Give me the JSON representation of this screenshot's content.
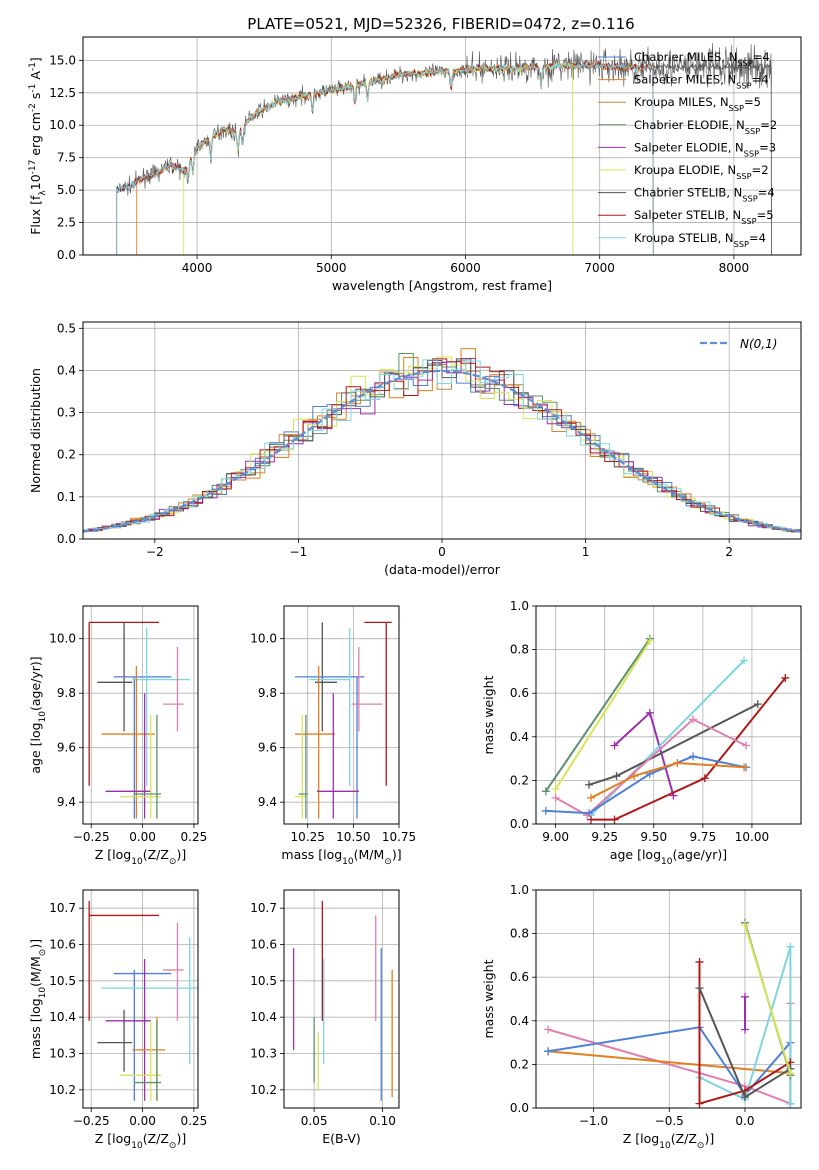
{
  "title": "PLATE=0521, MJD=52326, FIBERID=0472, z=0.116",
  "colors": {
    "chabrier_miles": "#4f7fd6",
    "salpeter_miles": "#e07f1f",
    "kroupa_miles": "#c08a3a",
    "chabrier_elodie": "#5f8f6f",
    "salpeter_elodie": "#9b2fb0",
    "kroupa_elodie": "#d9e35a",
    "chabrier_stelib": "#555555",
    "salpeter_stelib": "#b01818",
    "kroupa_stelib": "#7fd4e0",
    "pink": "#e07fb0",
    "gauss": "#5b8fd6"
  },
  "chart_data": [
    {
      "id": "spectrum",
      "type": "line",
      "xlabel": "wavelength [Angstrom, rest frame]",
      "ylabel": "Flux [f$_\\lambda$10$^{-17}$ erg cm$^{-2}$ s$^{-1}$ A$^{-1}$]",
      "xlim": [
        3150,
        8500
      ],
      "ylim": [
        0,
        16.8
      ],
      "xticks": [
        "4000",
        "5000",
        "6000",
        "7000",
        "8000"
      ],
      "yticks": [
        "0.0",
        "2.5",
        "5.0",
        "7.5",
        "10.0",
        "12.5",
        "15.0"
      ],
      "legend_position": "upper right",
      "legend": [
        {
          "label": "Chabrier MILES, N$_{SSP}$=4",
          "color": "#4f7fd6"
        },
        {
          "label": "Salpeter MILES, N$_{SSP}$=4",
          "color": "#e07f1f"
        },
        {
          "label": "Kroupa MILES, N$_{SSP}$=5",
          "color": "#c08a3a"
        },
        {
          "label": "Chabrier ELODIE, N$_{SSP}$=2",
          "color": "#5f8f6f"
        },
        {
          "label": "Salpeter ELODIE, N$_{SSP}$=3",
          "color": "#9b2fb0"
        },
        {
          "label": "Kroupa ELODIE, N$_{SSP}$=2",
          "color": "#d9e35a"
        },
        {
          "label": "Chabrier STELIB, N$_{SSP}$=4",
          "color": "#555555"
        },
        {
          "label": "Salpeter STELIB, N$_{SSP}$=5",
          "color": "#b01818"
        },
        {
          "label": "Kroupa STELIB, N$_{SSP}$=4",
          "color": "#7fd4e0"
        }
      ],
      "continuum": [
        [
          3400,
          5.0
        ],
        [
          3500,
          5.3
        ],
        [
          3600,
          6.0
        ],
        [
          3700,
          6.3
        ],
        [
          3800,
          7.0
        ],
        [
          3900,
          6.4
        ],
        [
          4000,
          8.3
        ],
        [
          4100,
          9.0
        ],
        [
          4200,
          9.7
        ],
        [
          4300,
          9.4
        ],
        [
          4400,
          10.6
        ],
        [
          4500,
          11.3
        ],
        [
          4600,
          11.8
        ],
        [
          4700,
          12.0
        ],
        [
          4800,
          12.3
        ],
        [
          4900,
          12.5
        ],
        [
          5000,
          12.7
        ],
        [
          5100,
          12.9
        ],
        [
          5200,
          13.1
        ],
        [
          5300,
          13.4
        ],
        [
          5400,
          13.6
        ],
        [
          5500,
          13.9
        ],
        [
          5600,
          14.0
        ],
        [
          5700,
          14.0
        ],
        [
          5800,
          14.1
        ],
        [
          5900,
          14.2
        ],
        [
          6000,
          14.2
        ],
        [
          6100,
          14.4
        ],
        [
          6200,
          14.4
        ],
        [
          6300,
          14.4
        ],
        [
          6400,
          14.4
        ],
        [
          6500,
          14.5
        ],
        [
          6600,
          14.5
        ],
        [
          6700,
          14.6
        ],
        [
          6800,
          14.6
        ],
        [
          6900,
          14.6
        ],
        [
          7000,
          14.6
        ],
        [
          7100,
          14.5
        ],
        [
          7200,
          14.5
        ],
        [
          7300,
          14.4
        ],
        [
          7400,
          14.5
        ],
        [
          7500,
          14.5
        ],
        [
          7600,
          14.4
        ],
        [
          7700,
          14.5
        ],
        [
          7800,
          14.5
        ],
        [
          7900,
          14.5
        ],
        [
          8000,
          14.5
        ],
        [
          8100,
          14.5
        ],
        [
          8200,
          14.5
        ],
        [
          8280,
          14.5
        ]
      ],
      "model_ranges": [
        {
          "key": "chabrier_stelib",
          "x": [
            3400,
            8280
          ]
        },
        {
          "key": "salpeter_miles",
          "x": [
            3550,
            7400
          ]
        },
        {
          "key": "kroupa_elodie",
          "x": [
            3900,
            6800
          ]
        },
        {
          "key": "salpeter_stelib",
          "x": [
            3400,
            7400
          ]
        },
        {
          "key": "kroupa_stelib",
          "x": [
            3400,
            7400
          ]
        }
      ]
    },
    {
      "id": "residuals",
      "type": "step",
      "xlabel": "(data-model)/error",
      "ylabel": "Normed distribution",
      "xlim": [
        -2.5,
        2.5
      ],
      "ylim": [
        0,
        0.515
      ],
      "xticks": [
        "−2",
        "−1",
        "0",
        "1",
        "2"
      ],
      "yticks": [
        "0.0",
        "0.1",
        "0.2",
        "0.3",
        "0.4",
        "0.5"
      ],
      "legend_position": "upper right",
      "legend": [
        {
          "label": "$\\mathcal{N}(0,1)$",
          "color": "#5b8fd6"
        }
      ],
      "curve": "gaussian"
    },
    {
      "id": "age_vs_z",
      "type": "errorbar",
      "xlabel": "Z [log$_{10}$(Z/Z$_\\odot$)]",
      "ylabel": "age  [log$_{10}$(age/yr)]",
      "xlim": [
        -0.29,
        0.27
      ],
      "ylim": [
        9.32,
        10.12
      ],
      "xticks": [
        "−0.25",
        "0.00",
        "0.25"
      ],
      "yticks": [
        "9.4",
        "9.6",
        "9.8",
        "10.0"
      ],
      "points": [
        {
          "color": "#b01818",
          "x": -0.26,
          "xmin": -0.26,
          "xmax": 0.08,
          "y": 10.06,
          "ymin": 9.46,
          "ymax": 10.06
        },
        {
          "color": "#555555",
          "x": -0.09,
          "xmin": -0.22,
          "xmax": -0.05,
          "y": 9.84,
          "ymin": 9.66,
          "ymax": 10.06
        },
        {
          "color": "#4f7fd6",
          "x": -0.04,
          "xmin": -0.14,
          "xmax": 0.14,
          "y": 9.86,
          "ymin": 9.34,
          "ymax": 9.86
        },
        {
          "color": "#7fd4e0",
          "x": 0.02,
          "xmin": -0.05,
          "xmax": 0.23,
          "y": 9.85,
          "ymin": 9.46,
          "ymax": 10.04
        },
        {
          "color": "#e07f1f",
          "x": -0.03,
          "xmin": -0.2,
          "xmax": 0.06,
          "y": 9.65,
          "ymin": 9.34,
          "ymax": 9.9
        },
        {
          "color": "#e07fb0",
          "x": 0.17,
          "xmin": 0.1,
          "xmax": 0.2,
          "y": 9.76,
          "ymin": 9.66,
          "ymax": 9.97
        },
        {
          "color": "#9b2fb0",
          "x": 0.01,
          "xmin": -0.18,
          "xmax": 0.04,
          "y": 9.44,
          "ymin": 9.34,
          "ymax": 9.8
        },
        {
          "color": "#d9e35a",
          "x": 0.04,
          "xmin": -0.11,
          "xmax": 0.09,
          "y": 9.42,
          "ymin": 9.34,
          "ymax": 9.72
        },
        {
          "color": "#5f8f6f",
          "x": 0.07,
          "xmin": -0.04,
          "xmax": 0.09,
          "y": 9.43,
          "ymin": 9.34,
          "ymax": 9.72
        }
      ]
    },
    {
      "id": "age_vs_mass",
      "type": "errorbar",
      "xlabel": "mass [log$_{10}$(M/M$_\\odot$)]",
      "ylabel": "",
      "xlim": [
        10.12,
        10.75
      ],
      "ylim": [
        9.32,
        10.12
      ],
      "xticks": [
        "10.25",
        "10.50",
        "10.75"
      ],
      "yticks": [
        "9.4",
        "9.6",
        "9.8",
        "10.0"
      ],
      "points": [
        {
          "color": "#b01818",
          "x": 10.68,
          "xmin": 10.56,
          "xmax": 10.71,
          "y": 10.06,
          "ymin": 9.46,
          "ymax": 10.06
        },
        {
          "color": "#555555",
          "x": 10.33,
          "xmin": 10.29,
          "xmax": 10.41,
          "y": 9.84,
          "ymin": 9.66,
          "ymax": 10.06
        },
        {
          "color": "#4f7fd6",
          "x": 10.52,
          "xmin": 10.18,
          "xmax": 10.56,
          "y": 9.86,
          "ymin": 9.34,
          "ymax": 9.86
        },
        {
          "color": "#7fd4e0",
          "x": 10.48,
          "xmin": 10.26,
          "xmax": 10.48,
          "y": 9.85,
          "ymin": 9.46,
          "ymax": 10.04
        },
        {
          "color": "#e07f1f",
          "x": 10.31,
          "xmin": 10.18,
          "xmax": 10.4,
          "y": 9.65,
          "ymin": 9.34,
          "ymax": 9.9
        },
        {
          "color": "#e07fb0",
          "x": 10.53,
          "xmin": 10.49,
          "xmax": 10.66,
          "y": 9.76,
          "ymin": 9.66,
          "ymax": 9.97
        },
        {
          "color": "#9b2fb0",
          "x": 10.39,
          "xmin": 10.3,
          "xmax": 10.53,
          "y": 9.44,
          "ymin": 9.34,
          "ymax": 9.8
        },
        {
          "color": "#d9e35a",
          "x": 10.22,
          "xmin": 10.18,
          "xmax": 10.24,
          "y": 9.42,
          "ymin": 9.34,
          "ymax": 9.72
        },
        {
          "color": "#5f8f6f",
          "x": 10.24,
          "xmin": 10.2,
          "xmax": 10.25,
          "y": 9.43,
          "ymin": 9.34,
          "ymax": 9.72
        }
      ]
    },
    {
      "id": "massweight_vs_age",
      "type": "line",
      "xlabel": "age  [log$_{10}$(age/yr)]",
      "ylabel": "mass weight",
      "xlim": [
        8.9,
        10.25
      ],
      "ylim": [
        0,
        1
      ],
      "xticks": [
        "9.00",
        "9.25",
        "9.50",
        "9.75",
        "10.00"
      ],
      "yticks": [
        "0.0",
        "0.2",
        "0.4",
        "0.6",
        "0.8",
        "1.0"
      ],
      "series": [
        {
          "color": "#5f8f6f",
          "x": [
            8.95,
            9.48
          ],
          "y": [
            0.15,
            0.85
          ]
        },
        {
          "color": "#d9e35a",
          "x": [
            9.0,
            9.48
          ],
          "y": [
            0.16,
            0.84
          ]
        },
        {
          "color": "#9b2fb0",
          "x": [
            9.3,
            9.48,
            9.6
          ],
          "y": [
            0.36,
            0.51,
            0.13
          ]
        },
        {
          "color": "#7fd4e0",
          "x": [
            9.18,
            9.96
          ],
          "y": [
            0.04,
            0.75
          ]
        },
        {
          "color": "#555555",
          "x": [
            9.17,
            9.31,
            10.03
          ],
          "y": [
            0.18,
            0.22,
            0.55
          ]
        },
        {
          "color": "#b01818",
          "x": [
            9.18,
            9.3,
            9.76,
            10.17
          ],
          "y": [
            0.02,
            0.02,
            0.21,
            0.67
          ]
        },
        {
          "color": "#e07fb0",
          "x": [
            9.0,
            9.16,
            9.7,
            9.97
          ],
          "y": [
            0.12,
            0.04,
            0.48,
            0.36
          ]
        },
        {
          "color": "#4f7fd6",
          "x": [
            8.95,
            9.17,
            9.48,
            9.7,
            9.97
          ],
          "y": [
            0.06,
            0.05,
            0.23,
            0.31,
            0.26
          ]
        },
        {
          "color": "#e07f1f",
          "x": [
            9.18,
            9.4,
            9.62,
            9.96
          ],
          "y": [
            0.12,
            0.22,
            0.28,
            0.26
          ]
        }
      ]
    },
    {
      "id": "mass_vs_z",
      "type": "errorbar",
      "xlabel": "Z [log$_{10}$(Z/Z$_\\odot$)]",
      "ylabel": "mass [log$_{10}$(M/M$_\\odot$)]",
      "xlim": [
        -0.29,
        0.27
      ],
      "ylim": [
        10.15,
        10.75
      ],
      "xticks": [
        "−0.25",
        "0.00",
        "0.25"
      ],
      "yticks": [
        "10.2",
        "10.3",
        "10.4",
        "10.5",
        "10.6",
        "10.7"
      ],
      "points": [
        {
          "color": "#b01818",
          "x": -0.26,
          "xmin": -0.26,
          "xmax": 0.08,
          "y": 10.68,
          "ymin": 10.39,
          "ymax": 10.72
        },
        {
          "color": "#e07fb0",
          "x": 0.17,
          "xmin": 0.1,
          "xmax": 0.2,
          "y": 10.53,
          "ymin": 10.39,
          "ymax": 10.66
        },
        {
          "color": "#4f7fd6",
          "x": -0.04,
          "xmin": -0.14,
          "xmax": 0.14,
          "y": 10.52,
          "ymin": 10.17,
          "ymax": 10.53
        },
        {
          "color": "#7fd4e0",
          "x": 0.23,
          "xmin": -0.2,
          "xmax": 0.27,
          "y": 10.48,
          "ymin": 10.27,
          "ymax": 10.62
        },
        {
          "color": "#9b2fb0",
          "x": 0.01,
          "xmin": -0.18,
          "xmax": 0.04,
          "y": 10.39,
          "ymin": 10.17,
          "ymax": 10.56
        },
        {
          "color": "#555555",
          "x": -0.09,
          "xmin": -0.22,
          "xmax": -0.05,
          "y": 10.33,
          "ymin": 10.25,
          "ymax": 10.42
        },
        {
          "color": "#e07f1f",
          "x": 0.07,
          "xmin": -0.05,
          "xmax": 0.11,
          "y": 10.31,
          "ymin": 10.17,
          "ymax": 10.4
        },
        {
          "color": "#d9e35a",
          "x": 0.04,
          "xmin": -0.11,
          "xmax": 0.09,
          "y": 10.24,
          "ymin": 10.17,
          "ymax": 10.39
        },
        {
          "color": "#5f8f6f",
          "x": 0.07,
          "xmin": -0.04,
          "xmax": 0.09,
          "y": 10.22,
          "ymin": 10.17,
          "ymax": 10.39
        }
      ]
    },
    {
      "id": "mass_vs_ebv",
      "type": "errorbar",
      "xlabel": "E(B-V)",
      "ylabel": "",
      "xlim": [
        0.028,
        0.112
      ],
      "ylim": [
        10.15,
        10.75
      ],
      "xticks": [
        "0.05",
        "0.10"
      ],
      "yticks": [
        "10.2",
        "10.3",
        "10.4",
        "10.5",
        "10.6",
        "10.7"
      ],
      "points": [
        {
          "color": "#9b2fb0",
          "x": 0.035,
          "xmin": 0.035,
          "xmax": 0.035,
          "y": 10.45,
          "ymin": 10.31,
          "ymax": 10.59
        },
        {
          "color": "#5f8f6f",
          "x": 0.05,
          "xmin": 0.05,
          "xmax": 0.05,
          "y": 10.31,
          "ymin": 10.22,
          "ymax": 10.4
        },
        {
          "color": "#d9e35a",
          "x": 0.053,
          "xmin": 0.053,
          "xmax": 0.053,
          "y": 10.29,
          "ymin": 10.2,
          "ymax": 10.36
        },
        {
          "color": "#b01818",
          "x": 0.056,
          "xmin": 0.056,
          "xmax": 0.056,
          "y": 10.55,
          "ymin": 10.39,
          "ymax": 10.72
        },
        {
          "color": "#7fd4e0",
          "x": 0.057,
          "xmin": 0.057,
          "xmax": 0.057,
          "y": 10.45,
          "ymin": 10.27,
          "ymax": 10.56
        },
        {
          "color": "#e07fb0",
          "x": 0.095,
          "xmin": 0.095,
          "xmax": 0.095,
          "y": 10.54,
          "ymin": 10.39,
          "ymax": 10.68
        },
        {
          "color": "#4f7fd6",
          "x": 0.099,
          "xmin": 0.099,
          "xmax": 0.099,
          "y": 10.39,
          "ymin": 10.17,
          "ymax": 10.59
        },
        {
          "color": "#e07f1f",
          "x": 0.107,
          "xmin": 0.107,
          "xmax": 0.107,
          "y": 10.36,
          "ymin": 10.18,
          "ymax": 10.53
        }
      ]
    },
    {
      "id": "massweight_vs_z",
      "type": "line",
      "xlabel": "Z [log$_{10}$(Z/Z$_\\odot$)]",
      "ylabel": "mass weight",
      "xlim": [
        -1.38,
        0.37
      ],
      "ylim": [
        0,
        1
      ],
      "xticks": [
        "−1.0",
        "−0.5",
        "0.0"
      ],
      "yticks": [
        "0.0",
        "0.2",
        "0.4",
        "0.6",
        "0.8",
        "1.0"
      ],
      "series": [
        {
          "color": "#e07fb0",
          "x": [
            -1.3,
            0.0,
            0.3,
            0.3
          ],
          "y": [
            0.36,
            0.1,
            0.02,
            0.48
          ]
        },
        {
          "color": "#e07f1f",
          "x": [
            -1.3,
            0.3
          ],
          "y": [
            0.26,
            0.16
          ]
        },
        {
          "color": "#4f7fd6",
          "x": [
            -1.3,
            -0.3,
            0.0,
            0.3,
            0.3
          ],
          "y": [
            0.26,
            0.37,
            0.06,
            0.3,
            0.02
          ]
        },
        {
          "color": "#7fd4e0",
          "x": [
            -0.3,
            0.0,
            0.3,
            0.3
          ],
          "y": [
            0.14,
            0.04,
            0.74,
            0.02
          ]
        },
        {
          "color": "#b01818",
          "x": [
            -0.3,
            -0.3,
            0.0,
            0.3
          ],
          "y": [
            0.67,
            0.02,
            0.08,
            0.21
          ]
        },
        {
          "color": "#555555",
          "x": [
            -0.3,
            0.0,
            0.3
          ],
          "y": [
            0.55,
            0.05,
            0.18
          ]
        },
        {
          "color": "#9b2fb0",
          "x": [
            0.0,
            0.0
          ],
          "y": [
            0.51,
            0.36
          ]
        },
        {
          "color": "#5f8f6f",
          "x": [
            0.0,
            0.3
          ],
          "y": [
            0.85,
            0.15
          ]
        },
        {
          "color": "#d9e35a",
          "x": [
            0.0,
            0.3
          ],
          "y": [
            0.84,
            0.16
          ]
        }
      ]
    }
  ]
}
